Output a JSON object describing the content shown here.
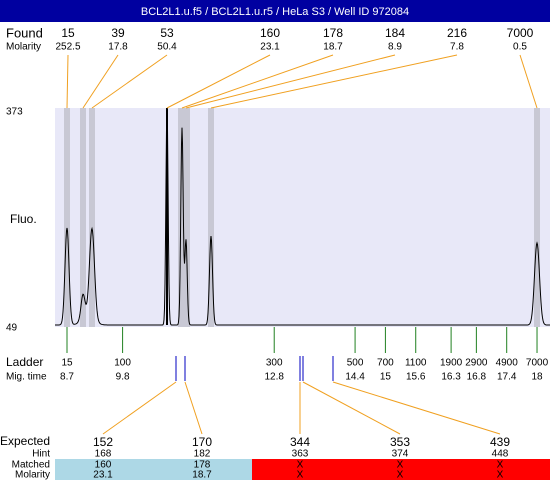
{
  "title": "BCL2L1.u.f5 / BCL2L1.u.r5 / HeLa S3 / Well ID 972084",
  "found": {
    "label": "Found",
    "molarity_label": "Molarity",
    "peaks": [
      {
        "size": 15,
        "molarity": 252.5
      },
      {
        "size": 39,
        "molarity": 17.8
      },
      {
        "size": 53,
        "molarity": 50.4
      },
      {
        "size": 160,
        "molarity": 23.1
      },
      {
        "size": 178,
        "molarity": 18.7
      },
      {
        "size": 184,
        "molarity": 8.9
      },
      {
        "size": 216,
        "molarity": 7.8
      },
      {
        "size": 7000,
        "molarity": 0.5
      }
    ]
  },
  "fluo": {
    "label": "Fluo.",
    "ymax": 373,
    "ymin": 49
  },
  "ladder": {
    "label": "Ladder",
    "time_label": "Mig. time",
    "bands": [
      {
        "size": 15,
        "time": 8.7
      },
      {
        "size": 100,
        "time": 9.8
      },
      {
        "size": 300,
        "time": 12.8
      },
      {
        "size": 500,
        "time": 14.4
      },
      {
        "size": 700,
        "time": 15
      },
      {
        "size": 1100,
        "time": 15.6
      },
      {
        "size": 1900,
        "time": 16.3
      },
      {
        "size": 2900,
        "time": 16.8
      },
      {
        "size": 4900,
        "time": 17.4
      },
      {
        "size": 7000,
        "time": 18
      }
    ]
  },
  "expected": {
    "label": "Expected",
    "hint_label": "Hint",
    "matched_label": "Matched",
    "molarity_label": "Molarity",
    "items": [
      {
        "expected": 152,
        "hint": 168,
        "matched": 160,
        "molarity": 23.1
      },
      {
        "expected": 170,
        "hint": 182,
        "matched": 178,
        "molarity": 18.7
      },
      {
        "expected": 344,
        "hint": 363,
        "matched": "X",
        "molarity": "X"
      },
      {
        "expected": 353,
        "hint": 374,
        "matched": "X",
        "molarity": "X"
      },
      {
        "expected": 439,
        "hint": 448,
        "matched": "X",
        "molarity": "X"
      }
    ]
  }
}
